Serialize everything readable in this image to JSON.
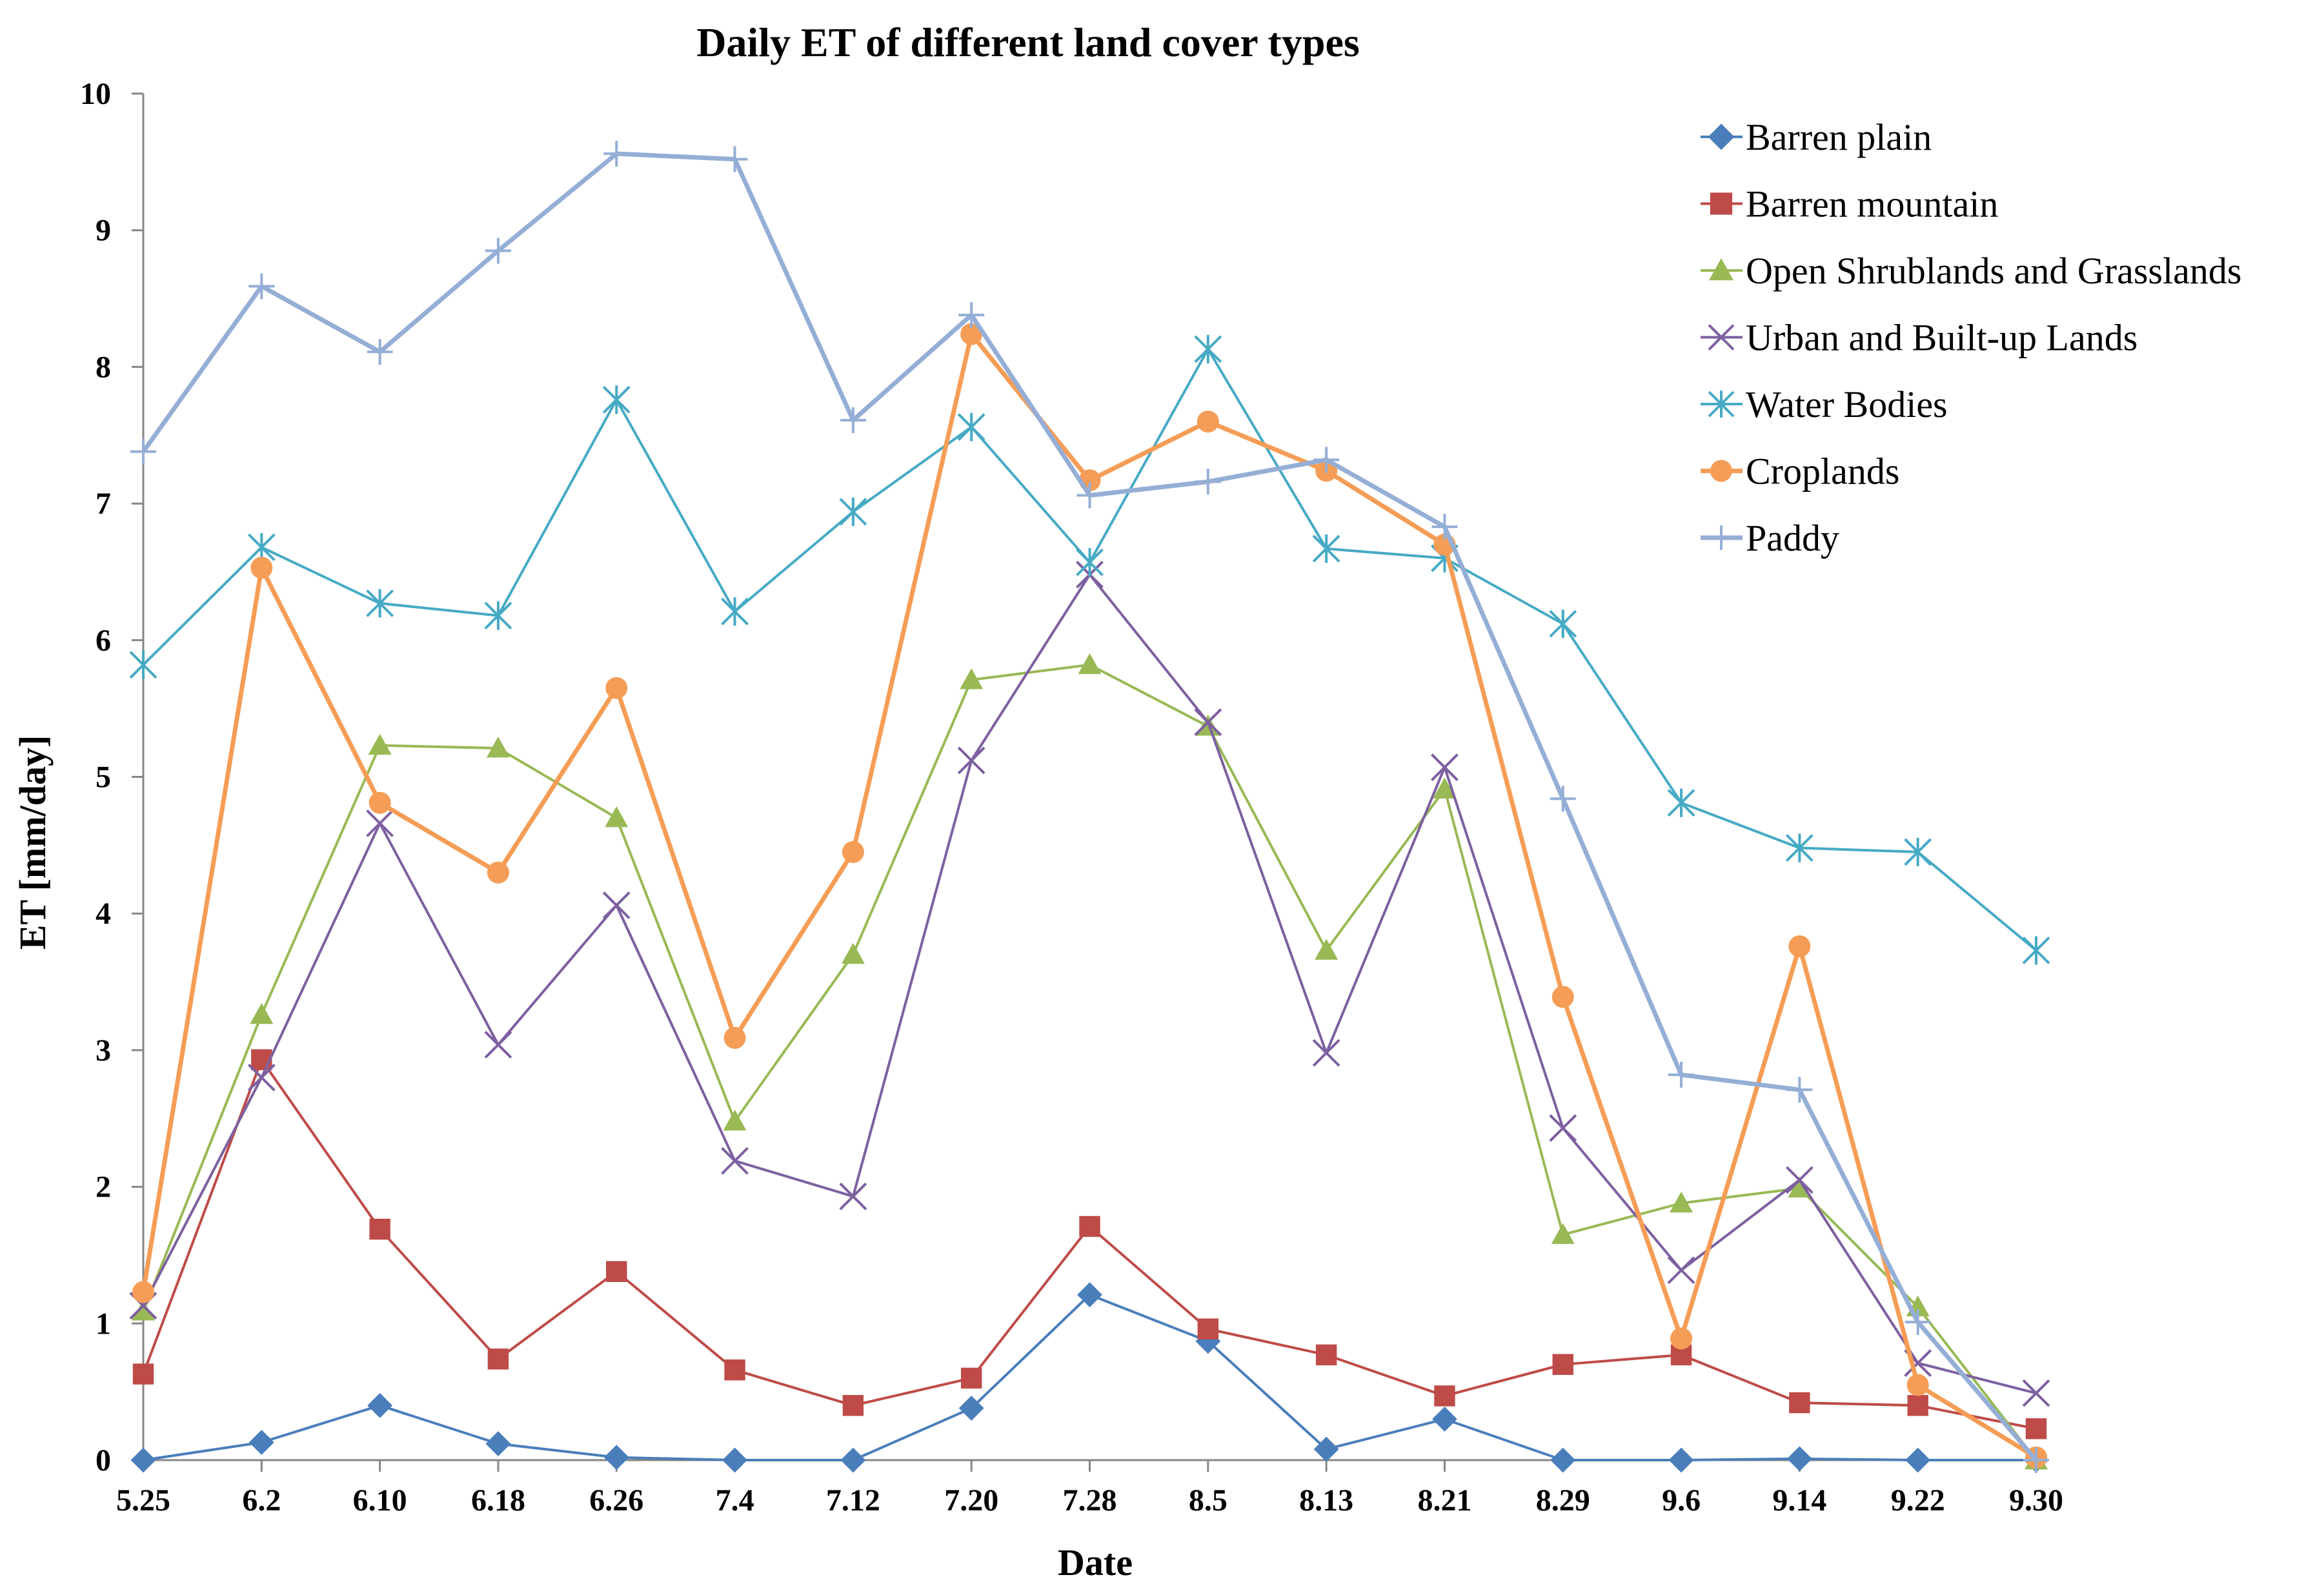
{
  "chart_data": {
    "type": "line",
    "title": "Daily ET of different land cover types",
    "xlabel": "Date",
    "ylabel": "ET [mm/day]",
    "ylim": [
      0,
      10
    ],
    "yticks": [
      "0",
      "1",
      "2",
      "3",
      "4",
      "5",
      "6",
      "7",
      "8",
      "9",
      "10"
    ],
    "categories": [
      "5.25",
      "6.2",
      "6.10",
      "6.18",
      "6.26",
      "7.4",
      "7.12",
      "7.20",
      "7.28",
      "8.5",
      "8.13",
      "8.21",
      "8.29",
      "9.6",
      "9.14",
      "9.22",
      "9.30"
    ],
    "legend_position": "top-right",
    "grid": false,
    "series": [
      {
        "name": "Barren plain",
        "color": "#4A7EBB",
        "marker": "diamond",
        "values": [
          0.0,
          0.13,
          0.4,
          0.12,
          0.02,
          0.0,
          0.0,
          0.38,
          1.21,
          0.87,
          0.08,
          0.3,
          0.0,
          0.0,
          0.01,
          0.0,
          0.0
        ]
      },
      {
        "name": "Barren mountain",
        "color": "#BE4B48",
        "marker": "square",
        "values": [
          0.63,
          2.93,
          1.69,
          0.74,
          1.38,
          0.66,
          0.4,
          0.6,
          1.71,
          0.96,
          0.77,
          0.47,
          0.7,
          0.77,
          0.42,
          0.4,
          0.23
        ]
      },
      {
        "name": "Open Shrublands and Grasslands",
        "color": "#98B954",
        "marker": "triangle",
        "values": [
          1.09,
          3.26,
          5.23,
          5.21,
          4.7,
          2.48,
          3.7,
          5.71,
          5.82,
          5.37,
          3.73,
          4.91,
          1.65,
          1.88,
          1.99,
          1.12,
          0.0
        ]
      },
      {
        "name": "Urban and Built-up Lands",
        "color": "#7D60A0",
        "marker": "x",
        "values": [
          1.13,
          2.8,
          4.66,
          3.04,
          4.06,
          2.19,
          1.93,
          5.12,
          6.48,
          5.4,
          2.98,
          5.07,
          2.43,
          1.39,
          2.05,
          0.71,
          0.49
        ]
      },
      {
        "name": "Water Bodies",
        "color": "#46AAC5",
        "marker": "star",
        "values": [
          5.82,
          6.68,
          6.27,
          6.18,
          7.76,
          6.21,
          6.94,
          7.56,
          6.57,
          8.13,
          6.67,
          6.6,
          6.12,
          4.81,
          4.48,
          4.45,
          3.73
        ]
      },
      {
        "name": "Croplands",
        "color": "#F59D56",
        "marker": "circle",
        "values": [
          1.23,
          6.53,
          4.81,
          4.3,
          5.65,
          3.09,
          4.45,
          8.24,
          7.17,
          7.6,
          7.24,
          6.7,
          3.39,
          0.89,
          3.76,
          0.55,
          0.02
        ]
      },
      {
        "name": "Paddy",
        "color": "#95AED6",
        "marker": "plus",
        "values": [
          7.38,
          8.59,
          8.11,
          8.85,
          9.56,
          9.52,
          7.61,
          8.38,
          7.06,
          7.16,
          7.32,
          6.83,
          4.84,
          2.82,
          2.71,
          1.01,
          0.0
        ]
      }
    ]
  }
}
